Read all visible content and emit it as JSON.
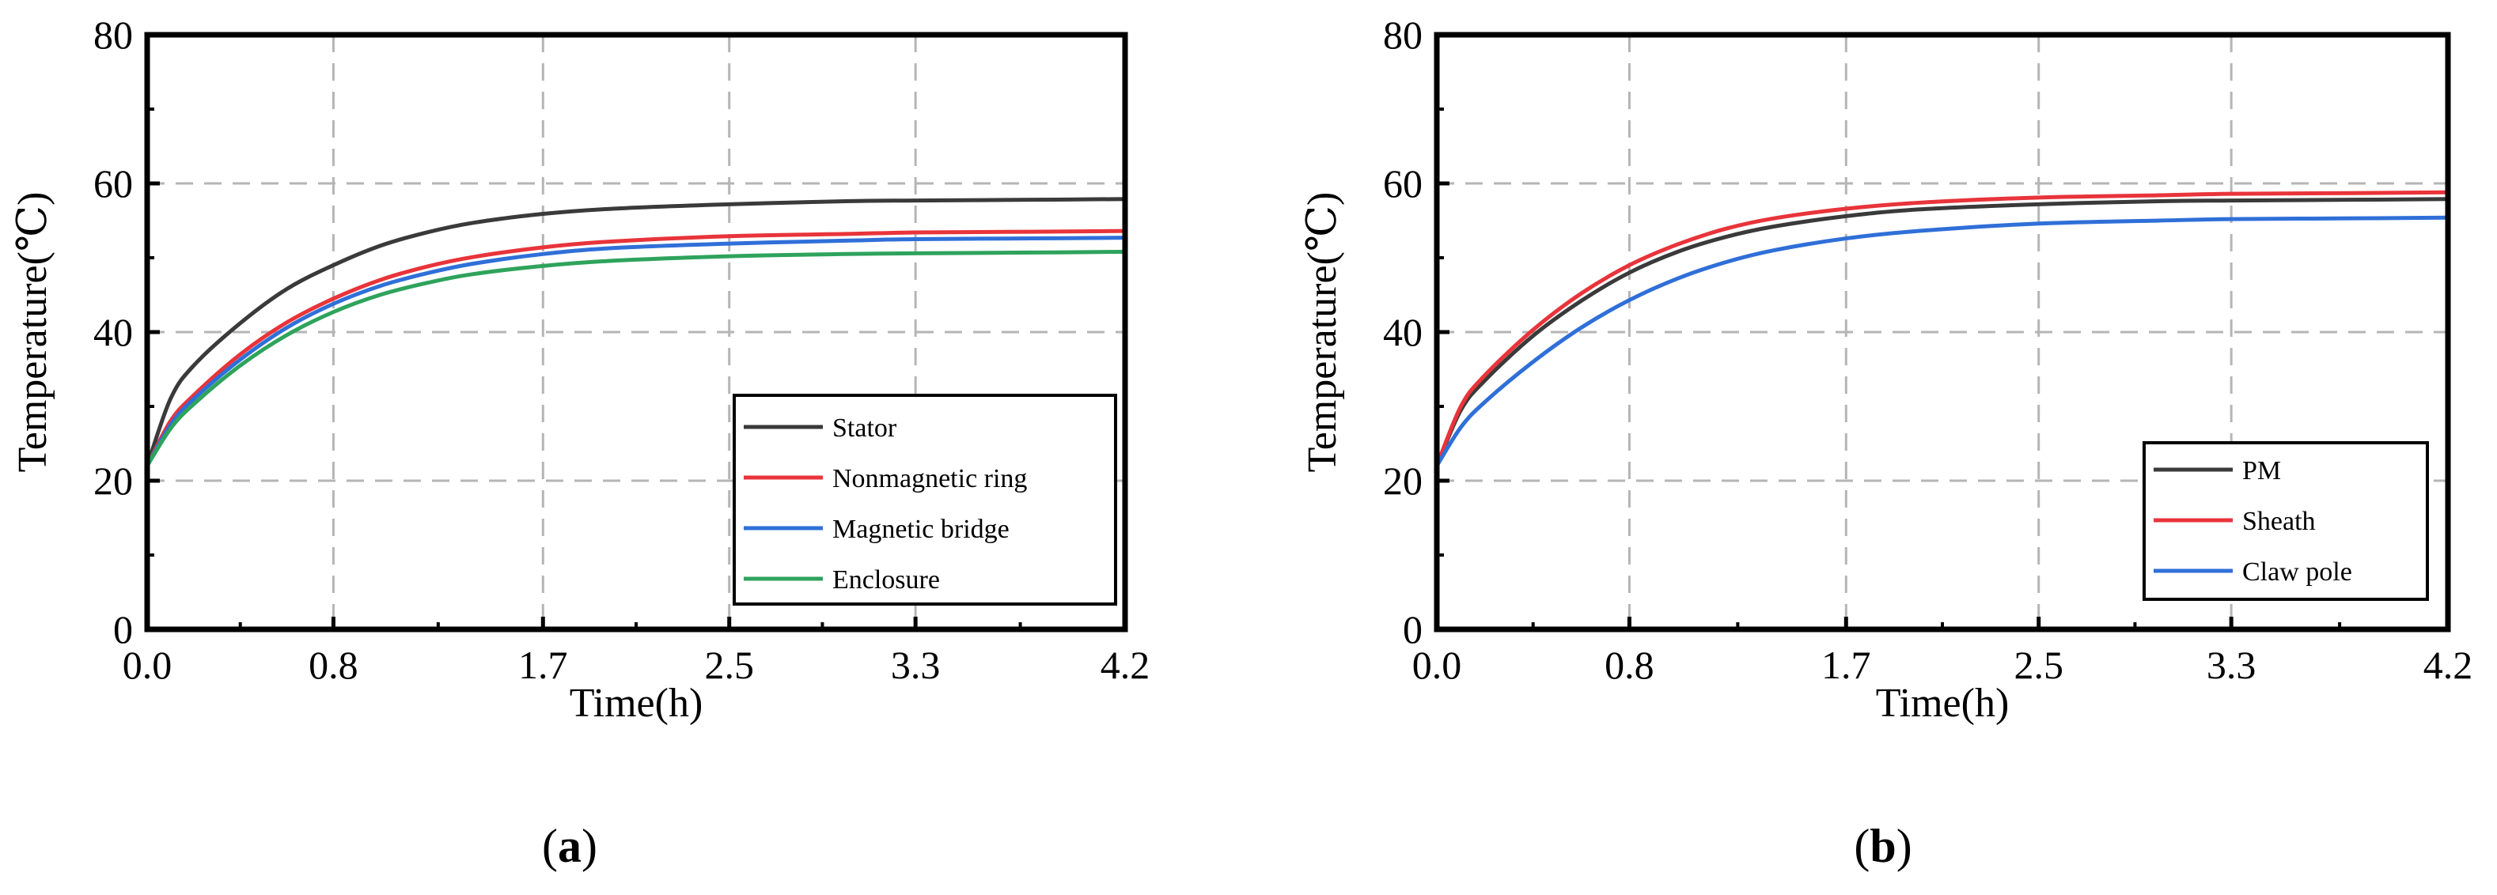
{
  "chart_data": [
    {
      "type": "line",
      "panel_label": "a",
      "xlabel": "Time(h)",
      "ylabel": "Temperature(℃)",
      "xlim": [
        0,
        4.2
      ],
      "ylim": [
        0,
        80
      ],
      "x_ticks": [
        0.0,
        0.8,
        1.7,
        2.5,
        3.3,
        4.2
      ],
      "x_tick_labels": [
        "0.0",
        "0.8",
        "1.7",
        "2.5",
        "3.3",
        "4.2"
      ],
      "y_ticks": [
        0,
        20,
        40,
        60,
        80
      ],
      "y_tick_labels": [
        "0",
        "20",
        "40",
        "60",
        "80"
      ],
      "grid": true,
      "legend_position": "bottom-right",
      "x": [
        0.0,
        0.1,
        0.2,
        0.4,
        0.6,
        0.8,
        1.0,
        1.2,
        1.4,
        1.7,
        2.0,
        2.5,
        3.0,
        3.3,
        3.8,
        4.2
      ],
      "series": [
        {
          "name": "Stator",
          "color": "#3a3a3a",
          "values": [
            22,
            31,
            35.5,
            41.2,
            45.8,
            49.0,
            51.6,
            53.4,
            54.7,
            55.9,
            56.6,
            57.2,
            57.6,
            57.7,
            57.8,
            57.9
          ]
        },
        {
          "name": "Nonmagnetic ring",
          "color": "#e8343a",
          "values": [
            22,
            28,
            31.5,
            37.0,
            41.3,
            44.5,
            47.0,
            48.8,
            50.1,
            51.4,
            52.2,
            52.9,
            53.2,
            53.4,
            53.5,
            53.6
          ]
        },
        {
          "name": "Magnetic bridge",
          "color": "#2f6fd8",
          "values": [
            22,
            27.5,
            31.0,
            36.3,
            40.6,
            43.8,
            46.2,
            47.9,
            49.2,
            50.5,
            51.3,
            51.9,
            52.3,
            52.5,
            52.6,
            52.7
          ]
        },
        {
          "name": "Enclosure",
          "color": "#2ea35c",
          "values": [
            22,
            27,
            30.3,
            35.5,
            39.6,
            42.7,
            45.0,
            46.6,
            47.8,
            48.9,
            49.6,
            50.2,
            50.5,
            50.6,
            50.7,
            50.8
          ]
        }
      ]
    },
    {
      "type": "line",
      "panel_label": "b",
      "xlabel": "Time(h)",
      "ylabel": "Temperature(℃)",
      "xlim": [
        0,
        4.2
      ],
      "ylim": [
        0,
        80
      ],
      "x_ticks": [
        0.0,
        0.8,
        1.7,
        2.5,
        3.3,
        4.2
      ],
      "x_tick_labels": [
        "0.0",
        "0.8",
        "1.7",
        "2.5",
        "3.3",
        "4.2"
      ],
      "y_ticks": [
        0,
        20,
        40,
        60,
        80
      ],
      "y_tick_labels": [
        "0",
        "20",
        "40",
        "60",
        "80"
      ],
      "grid": true,
      "legend_position": "bottom-right",
      "x": [
        0.0,
        0.1,
        0.2,
        0.4,
        0.6,
        0.8,
        1.0,
        1.2,
        1.4,
        1.7,
        2.0,
        2.5,
        3.0,
        3.3,
        3.8,
        4.2
      ],
      "series": [
        {
          "name": "PM",
          "color": "#3a3a3a",
          "values": [
            22,
            29.5,
            33.5,
            39.5,
            44.2,
            48.0,
            50.8,
            52.8,
            54.2,
            55.6,
            56.5,
            57.2,
            57.6,
            57.7,
            57.8,
            57.9
          ]
        },
        {
          "name": "Sheath",
          "color": "#e8343a",
          "values": [
            22,
            30.0,
            34.2,
            40.3,
            45.2,
            49.0,
            51.8,
            53.9,
            55.3,
            56.6,
            57.4,
            58.1,
            58.4,
            58.6,
            58.7,
            58.8
          ]
        },
        {
          "name": "Claw pole",
          "color": "#2f6fd8",
          "values": [
            22,
            27.2,
            30.6,
            36.0,
            40.6,
            44.3,
            47.2,
            49.4,
            51.0,
            52.6,
            53.6,
            54.6,
            55.0,
            55.2,
            55.3,
            55.4
          ]
        }
      ]
    }
  ]
}
